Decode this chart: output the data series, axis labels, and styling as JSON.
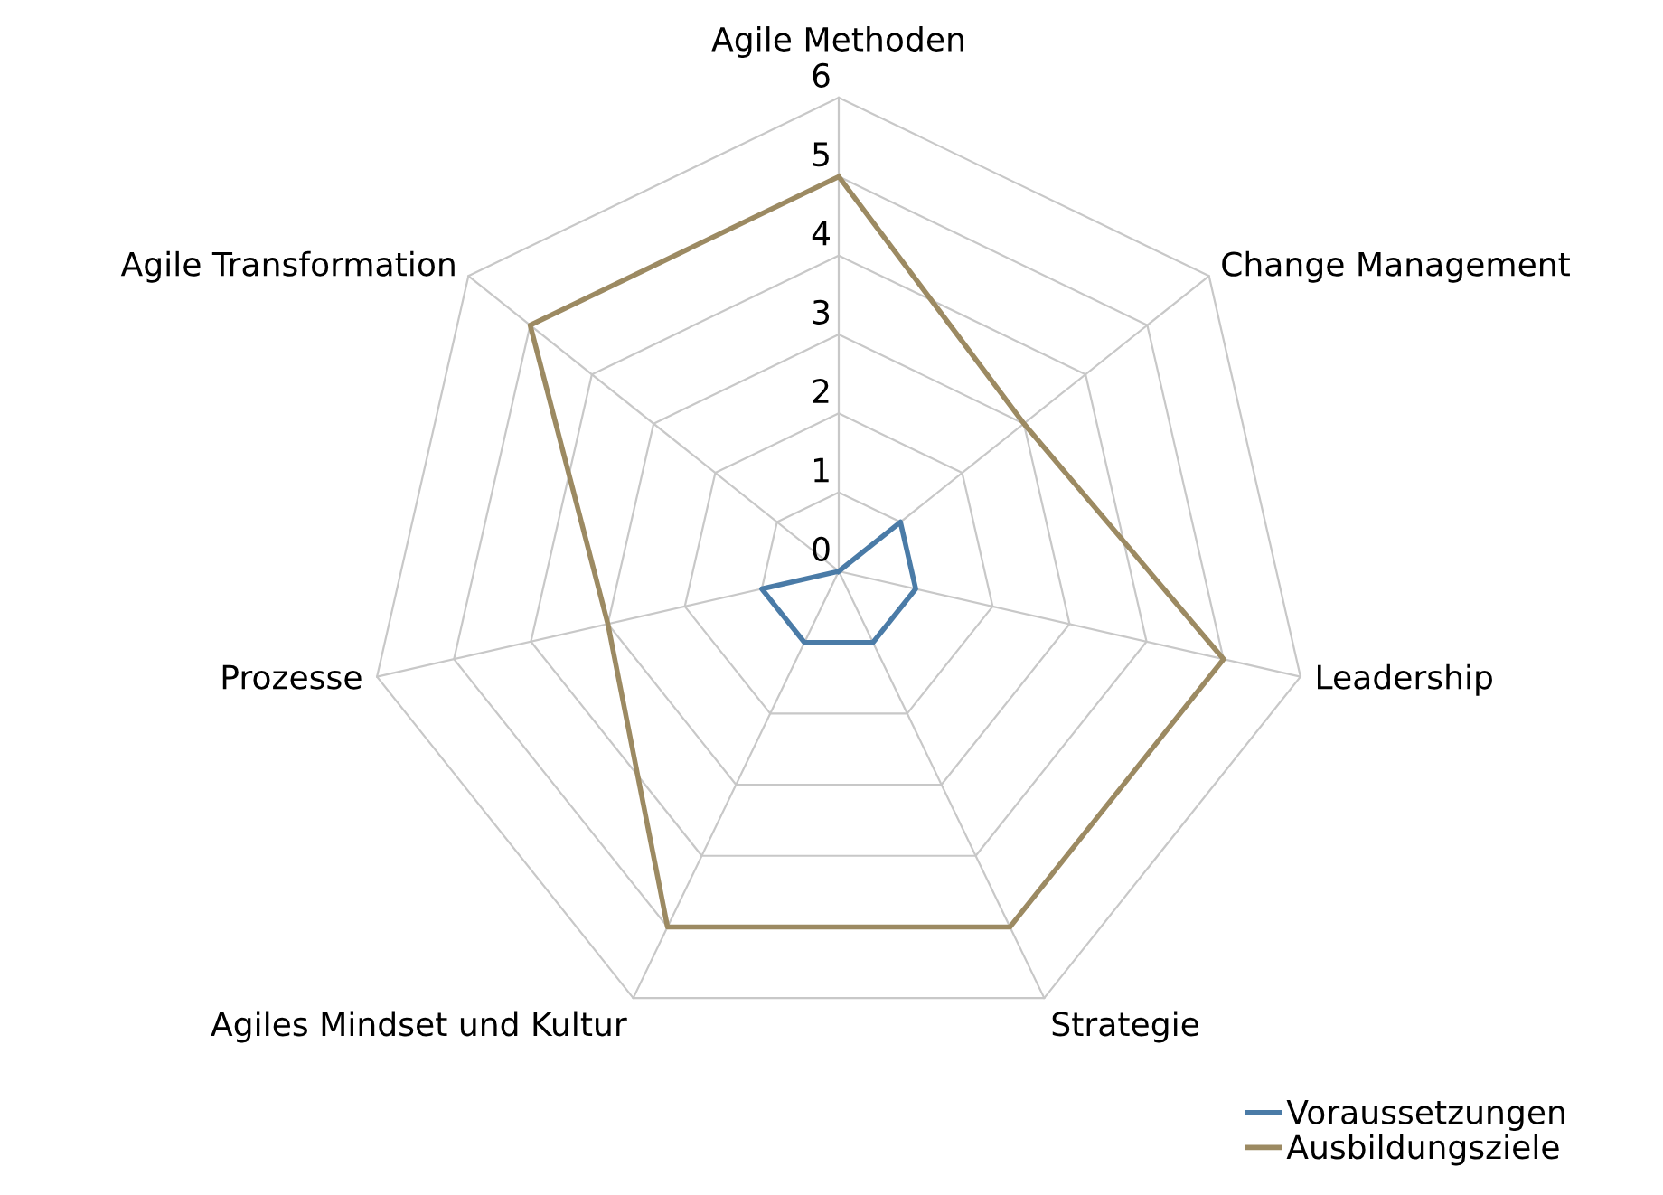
{
  "chart_data": {
    "type": "radar",
    "categories": [
      "Agile Methoden",
      "Change Management",
      "Leadership",
      "Strategie",
      "Agiles Mindset und Kultur",
      "Prozesse",
      "Agile Transformation"
    ],
    "ylim": [
      0,
      6
    ],
    "yticks": [
      0,
      1,
      2,
      3,
      4,
      5,
      6
    ],
    "grid": true,
    "legend": "bottom right",
    "series": [
      {
        "name": "Voraussetzungen",
        "color": "#4a7ba7",
        "values": [
          0,
          1,
          1,
          1,
          1,
          1,
          0
        ]
      },
      {
        "name": "Ausbildungsziele",
        "color": "#9c8a62",
        "values": [
          5,
          3,
          5,
          5,
          5,
          3,
          5
        ]
      }
    ]
  }
}
